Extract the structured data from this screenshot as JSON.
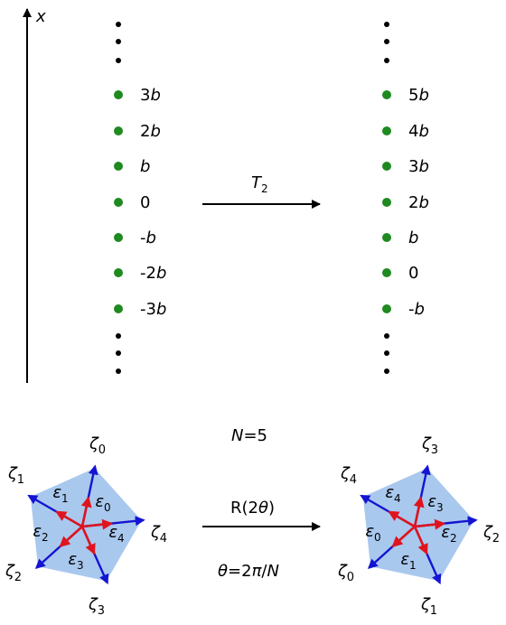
{
  "axis_label": "x",
  "left_column": {
    "labels": [
      {
        "num": "3",
        "sym": "b"
      },
      {
        "num": "2",
        "sym": "b"
      },
      {
        "num": "",
        "sym": "b"
      },
      {
        "num": "0",
        "sym": ""
      },
      {
        "num": "-",
        "sym": "b"
      },
      {
        "num": "-2",
        "sym": "b"
      },
      {
        "num": "-3",
        "sym": "b"
      }
    ]
  },
  "right_column": {
    "labels": [
      {
        "num": "5",
        "sym": "b"
      },
      {
        "num": "4",
        "sym": "b"
      },
      {
        "num": "3",
        "sym": "b"
      },
      {
        "num": "2",
        "sym": "b"
      },
      {
        "num": "",
        "sym": "b"
      },
      {
        "num": "0",
        "sym": ""
      },
      {
        "num": "-",
        "sym": "b"
      }
    ]
  },
  "top_arrow": {
    "label_main": "T",
    "label_sub": "2"
  },
  "bottom": {
    "n_label": {
      "var": "N",
      "rest": "=5"
    },
    "rotation_label": {
      "fn": "R(2",
      "theta": "θ",
      "close": ")"
    },
    "theta_label": {
      "theta": "θ",
      "eq": "=2",
      "pi": "π",
      "slash": "/",
      "n": "N"
    }
  },
  "left_pentagon": {
    "zeta": [
      {
        "sym": "ζ",
        "sub": "0"
      },
      {
        "sym": "ζ",
        "sub": "1"
      },
      {
        "sym": "ζ",
        "sub": "2"
      },
      {
        "sym": "ζ",
        "sub": "3"
      },
      {
        "sym": "ζ",
        "sub": "4"
      }
    ],
    "eps": [
      {
        "sym": "ε",
        "sub": "0"
      },
      {
        "sym": "ε",
        "sub": "1"
      },
      {
        "sym": "ε",
        "sub": "2"
      },
      {
        "sym": "ε",
        "sub": "3"
      },
      {
        "sym": "ε",
        "sub": "4"
      }
    ]
  },
  "right_pentagon": {
    "zeta": [
      {
        "sym": "ζ",
        "sub": "3"
      },
      {
        "sym": "ζ",
        "sub": "4"
      },
      {
        "sym": "ζ",
        "sub": "0"
      },
      {
        "sym": "ζ",
        "sub": "1"
      },
      {
        "sym": "ζ",
        "sub": "2"
      }
    ],
    "eps": [
      {
        "sym": "ε",
        "sub": "3"
      },
      {
        "sym": "ε",
        "sub": "4"
      },
      {
        "sym": "ε",
        "sub": "0"
      },
      {
        "sym": "ε",
        "sub": "1"
      },
      {
        "sym": "ε",
        "sub": "2"
      }
    ]
  },
  "colors": {
    "dot": "#1f8a1f",
    "pentagon_fill": "#a9c8ee",
    "zeta_arrow": "#1414d2",
    "eps_arrow": "#e0141e",
    "line": "#000000"
  }
}
